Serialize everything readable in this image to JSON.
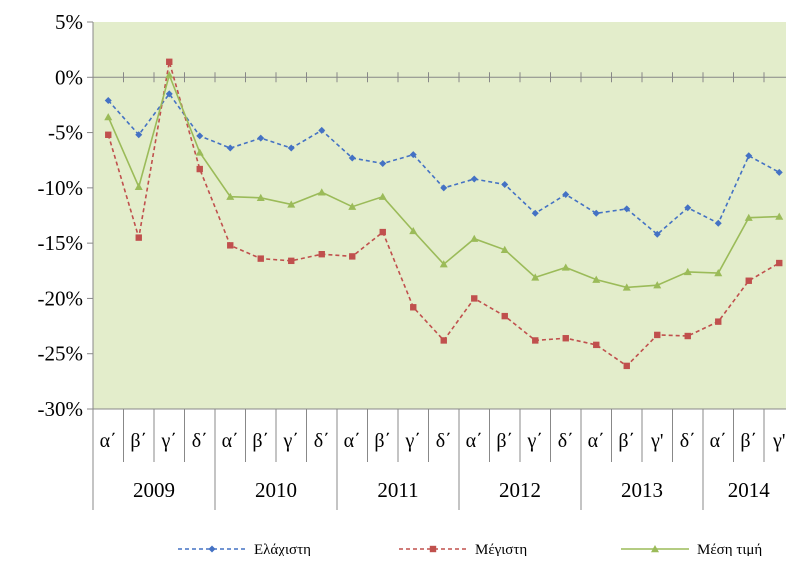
{
  "chart_data": {
    "type": "line",
    "title": "",
    "xlabel": "",
    "ylabel": "",
    "ylim": [
      -30,
      5
    ],
    "yticks": [
      "5%",
      "0%",
      "-5%",
      "-10%",
      "-15%",
      "-20%",
      "-25%",
      "-30%"
    ],
    "ytick_values": [
      5,
      0,
      -5,
      -10,
      -15,
      -20,
      -25,
      -30
    ],
    "categories": [
      "α΄",
      "β΄",
      "γ΄",
      "δ΄",
      "α΄",
      "β΄",
      "γ΄",
      "δ΄",
      "α΄",
      "β΄",
      "γ΄",
      "δ΄",
      "α΄",
      "β΄",
      "γ΄",
      "δ΄",
      "α΄",
      "β΄",
      "γ'",
      "δ΄",
      "α΄",
      "β΄",
      "γ'"
    ],
    "years": [
      {
        "label": "2009",
        "count": 4
      },
      {
        "label": "2010",
        "count": 4
      },
      {
        "label": "2011",
        "count": 4
      },
      {
        "label": "2012",
        "count": 4
      },
      {
        "label": "2013",
        "count": 4
      },
      {
        "label": "2014",
        "count": 3
      }
    ],
    "grid": false,
    "legend_position": "bottom",
    "series": [
      {
        "name": "Ελάχιστη",
        "color": "#4472C4",
        "dash": "dashed",
        "marker": "diamond",
        "values": [
          -2.1,
          -5.2,
          -1.5,
          -5.3,
          -6.4,
          -5.5,
          -6.4,
          -4.8,
          -7.3,
          -7.8,
          -7.0,
          -10.0,
          -9.2,
          -9.7,
          -12.3,
          -10.6,
          -12.3,
          -11.9,
          -14.2,
          -11.8,
          -13.2,
          -7.1,
          -8.6
        ]
      },
      {
        "name": "Μέγιστη",
        "color": "#C0504D",
        "dash": "dashed",
        "marker": "square",
        "values": [
          -5.2,
          -14.5,
          1.4,
          -8.3,
          -15.2,
          -16.4,
          -16.6,
          -16.0,
          -16.2,
          -14.0,
          -20.8,
          -23.8,
          -20.0,
          -21.6,
          -23.8,
          -23.6,
          -24.2,
          -26.1,
          -23.3,
          -23.4,
          -22.1,
          -18.4,
          -16.8
        ]
      },
      {
        "name": "Μέση τιμή",
        "color": "#9BBB59",
        "dash": "solid",
        "marker": "triangle",
        "values": [
          -3.6,
          -9.9,
          0.2,
          -6.8,
          -10.8,
          -10.9,
          -11.5,
          -10.4,
          -11.7,
          -10.8,
          -13.9,
          -16.9,
          -14.6,
          -15.6,
          -18.1,
          -17.2,
          -18.3,
          -19.0,
          -18.8,
          -17.6,
          -17.7,
          -12.7,
          -12.6
        ]
      }
    ]
  }
}
